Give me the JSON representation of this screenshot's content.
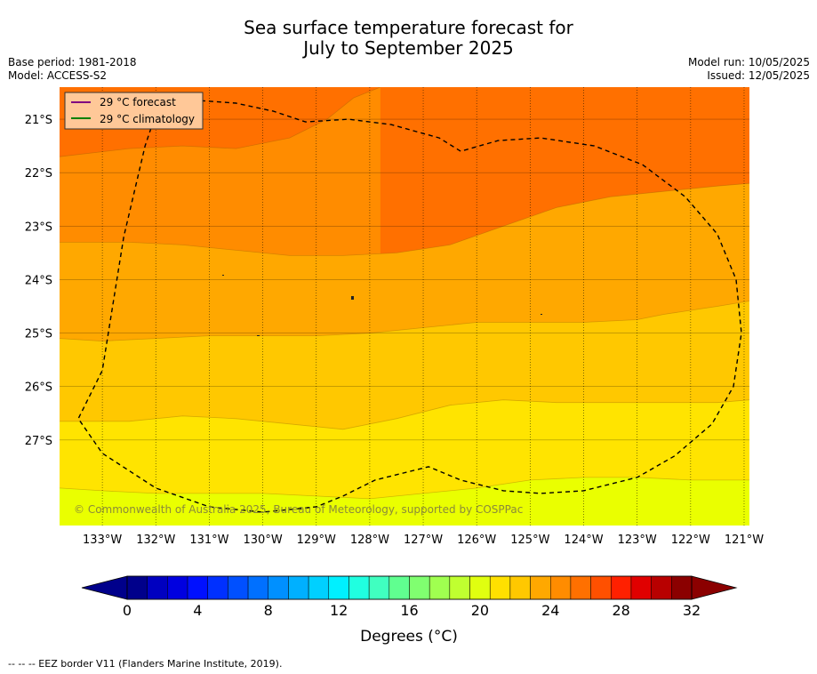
{
  "title_line1": "Sea surface temperature forecast for",
  "title_line2": "July to September 2025",
  "meta": {
    "base_period": "Base period: 1981-2018",
    "model": "Model: ACCESS-S2",
    "model_run": "Model run: 10/05/2025",
    "issued": "Issued: 12/05/2025"
  },
  "copyright": "© Commonwealth of Australia 2025, Bureau of Meteorology, supported by COSPPac",
  "footer": "--  --  -- EEZ border V11 (Flanders Marine Institute, 2019).",
  "legend": {
    "forecast": "29 °C  forecast",
    "climatology": "29 °C  climatology",
    "forecast_color": "#800080",
    "climatology_color": "#008000"
  },
  "chart_data": {
    "type": "heatmap",
    "title": "Sea surface temperature forecast for July to September 2025",
    "x_range": [
      -133.8,
      -120.9
    ],
    "y_range": [
      -28.6,
      -20.4
    ],
    "x_ticks": [
      {
        "value": -133,
        "label": "133°W"
      },
      {
        "value": -132,
        "label": "132°W"
      },
      {
        "value": -131,
        "label": "131°W"
      },
      {
        "value": -130,
        "label": "130°W"
      },
      {
        "value": -129,
        "label": "129°W"
      },
      {
        "value": -128,
        "label": "128°W"
      },
      {
        "value": -127,
        "label": "127°W"
      },
      {
        "value": -126,
        "label": "126°W"
      },
      {
        "value": -125,
        "label": "125°W"
      },
      {
        "value": -124,
        "label": "124°W"
      },
      {
        "value": -123,
        "label": "123°W"
      },
      {
        "value": -122,
        "label": "122°W"
      },
      {
        "value": -121,
        "label": "121°W"
      }
    ],
    "y_ticks": [
      {
        "value": -21,
        "label": "21°S"
      },
      {
        "value": -22,
        "label": "22°S"
      },
      {
        "value": -23,
        "label": "23°S"
      },
      {
        "value": -24,
        "label": "24°S"
      },
      {
        "value": -25,
        "label": "25°S"
      },
      {
        "value": -26,
        "label": "26°S"
      },
      {
        "value": -27,
        "label": "27°S"
      }
    ],
    "contour_levels": [
      {
        "min": 27,
        "max": 28,
        "color": "#ff7000"
      },
      {
        "min": 26,
        "max": 27,
        "color": "#ff8c00"
      },
      {
        "min": 25,
        "max": 26,
        "color": "#ffa800"
      },
      {
        "min": 24,
        "max": 25,
        "color": "#ffc800"
      },
      {
        "min": 23,
        "max": 24,
        "color": "#ffe400"
      },
      {
        "min": 22,
        "max": 23,
        "color": "#eaff00"
      }
    ],
    "contour_boundaries": [
      {
        "between": [
          28,
          27
        ],
        "points": [
          [
            -133.8,
            -21.7
          ],
          [
            -132.5,
            -21.55
          ],
          [
            -131.5,
            -21.5
          ],
          [
            -130.5,
            -21.55
          ],
          [
            -129.5,
            -21.35
          ],
          [
            -128.8,
            -21.0
          ],
          [
            -128.3,
            -20.6
          ],
          [
            -127.8,
            -20.4
          ]
        ]
      },
      {
        "between": [
          27,
          26
        ],
        "points": [
          [
            -133.8,
            -23.3
          ],
          [
            -132.5,
            -23.3
          ],
          [
            -131.5,
            -23.35
          ],
          [
            -130.5,
            -23.45
          ],
          [
            -129.5,
            -23.55
          ],
          [
            -128.5,
            -23.55
          ],
          [
            -127.5,
            -23.5
          ],
          [
            -126.5,
            -23.35
          ],
          [
            -125.5,
            -23.0
          ],
          [
            -124.5,
            -22.65
          ],
          [
            -123.5,
            -22.45
          ],
          [
            -122.5,
            -22.35
          ],
          [
            -121.5,
            -22.25
          ],
          [
            -120.9,
            -22.2
          ]
        ]
      },
      {
        "between": [
          26,
          25
        ],
        "points": [
          [
            -133.8,
            -25.1
          ],
          [
            -133.0,
            -25.15
          ],
          [
            -132.0,
            -25.1
          ],
          [
            -131.0,
            -25.05
          ],
          [
            -130.0,
            -25.05
          ],
          [
            -129.0,
            -25.05
          ],
          [
            -128.0,
            -25.0
          ],
          [
            -127.0,
            -24.9
          ],
          [
            -126.0,
            -24.8
          ],
          [
            -125.0,
            -24.8
          ],
          [
            -124.0,
            -24.8
          ],
          [
            -123.0,
            -24.75
          ],
          [
            -122.5,
            -24.65
          ],
          [
            -121.5,
            -24.5
          ],
          [
            -120.9,
            -24.4
          ]
        ]
      },
      {
        "between": [
          25,
          24
        ],
        "points": [
          [
            -133.8,
            -26.65
          ],
          [
            -132.5,
            -26.65
          ],
          [
            -131.5,
            -26.55
          ],
          [
            -130.5,
            -26.6
          ],
          [
            -129.5,
            -26.7
          ],
          [
            -128.5,
            -26.8
          ],
          [
            -127.5,
            -26.6
          ],
          [
            -126.5,
            -26.35
          ],
          [
            -125.5,
            -26.25
          ],
          [
            -124.5,
            -26.3
          ],
          [
            -123.5,
            -26.3
          ],
          [
            -122.5,
            -26.3
          ],
          [
            -121.5,
            -26.3
          ],
          [
            -120.9,
            -26.25
          ]
        ]
      },
      {
        "between": [
          24,
          23
        ],
        "points": [
          [
            -133.8,
            -27.9
          ],
          [
            -133.0,
            -27.95
          ],
          [
            -132.0,
            -28.0
          ],
          [
            -131.0,
            -28.0
          ],
          [
            -130.0,
            -28.0
          ],
          [
            -129.0,
            -28.05
          ],
          [
            -128.0,
            -28.1
          ],
          [
            -127.0,
            -28.0
          ],
          [
            -126.0,
            -27.9
          ],
          [
            -125.0,
            -27.75
          ],
          [
            -124.0,
            -27.7
          ],
          [
            -123.0,
            -27.7
          ],
          [
            -122.0,
            -27.75
          ],
          [
            -121.0,
            -27.75
          ],
          [
            -120.9,
            -27.75
          ]
        ]
      }
    ],
    "eez_border": [
      [
        -131.9,
        -20.6
      ],
      [
        -132.2,
        -21.5
      ],
      [
        -132.6,
        -23.2
      ],
      [
        -133.0,
        -25.7
      ],
      [
        -133.45,
        -26.6
      ],
      [
        -133.0,
        -27.25
      ],
      [
        -132.0,
        -27.9
      ],
      [
        -131.0,
        -28.25
      ],
      [
        -130.0,
        -28.35
      ],
      [
        -129.0,
        -28.25
      ],
      [
        -128.5,
        -28.05
      ],
      [
        -127.9,
        -27.75
      ],
      [
        -127.3,
        -27.6
      ],
      [
        -126.9,
        -27.5
      ],
      [
        -126.3,
        -27.75
      ],
      [
        -125.5,
        -27.95
      ],
      [
        -124.8,
        -28.0
      ],
      [
        -124.0,
        -27.95
      ],
      [
        -123.0,
        -27.7
      ],
      [
        -122.3,
        -27.3
      ],
      [
        -121.6,
        -26.7
      ],
      [
        -121.2,
        -26.0
      ],
      [
        -121.05,
        -25.0
      ],
      [
        -121.15,
        -24.0
      ],
      [
        -121.5,
        -23.15
      ],
      [
        -122.1,
        -22.45
      ],
      [
        -122.9,
        -21.85
      ],
      [
        -123.8,
        -21.5
      ],
      [
        -124.8,
        -21.35
      ],
      [
        -125.6,
        -21.4
      ],
      [
        -126.3,
        -21.6
      ],
      [
        -126.7,
        -21.35
      ],
      [
        -127.6,
        -21.1
      ],
      [
        -128.4,
        -21.0
      ],
      [
        -129.2,
        -21.05
      ],
      [
        -129.8,
        -20.85
      ],
      [
        -130.5,
        -20.7
      ],
      [
        -131.2,
        -20.65
      ],
      [
        -131.9,
        -20.6
      ]
    ],
    "colorbar": {
      "label": "Degrees (°C)",
      "min": 0,
      "max": 32,
      "ticks": [
        0,
        4,
        8,
        12,
        16,
        20,
        24,
        28,
        32
      ],
      "colors": [
        "#00008b",
        "#0000c0",
        "#0000e0",
        "#0010ff",
        "#0030ff",
        "#0050ff",
        "#0070ff",
        "#0090ff",
        "#00b0ff",
        "#00d0ff",
        "#00f0ff",
        "#20ffe0",
        "#40ffc0",
        "#60ff90",
        "#80ff70",
        "#a0ff50",
        "#c0ff30",
        "#e0ff10",
        "#ffe000",
        "#ffc800",
        "#ffa800",
        "#ff8c00",
        "#ff7000",
        "#ff5000",
        "#ff2000",
        "#e00000",
        "#b80000",
        "#8b0000"
      ],
      "under_color": "#00008b",
      "over_color": "#8b0000"
    }
  }
}
